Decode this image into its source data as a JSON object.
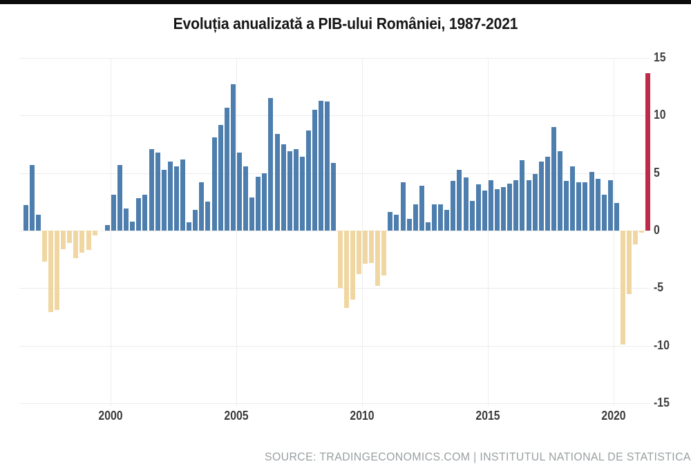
{
  "header": {
    "title": "Evoluția anualizată a PIB-ului României, 1987-2021"
  },
  "footer": {
    "source": "SOURCE: TRADINGECONOMICS.COM | INSTITUTUL NATIONAL DE STATISTICA"
  },
  "chart_data": {
    "type": "bar",
    "title": "Evoluția anualizată a PIB-ului României, 1987-2021",
    "unit": "percent",
    "frequency": "quarterly",
    "start_period": "1996-Q3",
    "end_period": "2021-Q2",
    "ylim": [
      -15,
      15
    ],
    "y_ticks": [
      15,
      10,
      5,
      0,
      -5,
      -10,
      -15
    ],
    "x_tick_years": [
      2000,
      2005,
      2010,
      2015,
      2020
    ],
    "grid": true,
    "legend": "none",
    "colors": {
      "positive": "#4d7ead",
      "negative": "#f0d7a2",
      "latest": "#be2b49",
      "gridline": "#ebebeb",
      "title_text": "#161616",
      "axis_text": "#3e3e3e",
      "source_text": "#9a9fa2"
    },
    "latest_bar_index": 99,
    "values": [
      2.2,
      5.7,
      1.4,
      -2.7,
      -7.1,
      -6.9,
      -1.6,
      -1.1,
      -2.4,
      -1.9,
      -1.7,
      -0.4,
      0.0,
      0.5,
      3.1,
      5.7,
      1.9,
      0.8,
      2.8,
      3.1,
      7.1,
      6.8,
      5.3,
      6.0,
      5.6,
      6.2,
      0.7,
      1.8,
      4.2,
      2.5,
      8.1,
      9.2,
      10.7,
      12.7,
      6.8,
      5.6,
      2.9,
      4.7,
      5.0,
      11.5,
      8.4,
      7.5,
      6.9,
      7.1,
      6.4,
      8.7,
      10.5,
      11.3,
      11.2,
      5.9,
      -5.0,
      -6.7,
      -6.0,
      -3.8,
      -2.9,
      -2.8,
      -4.8,
      -3.9,
      1.6,
      1.4,
      4.2,
      1.0,
      2.3,
      3.9,
      0.7,
      2.3,
      2.3,
      1.8,
      4.3,
      5.3,
      4.6,
      2.6,
      4.0,
      3.5,
      4.4,
      3.6,
      3.8,
      4.1,
      4.4,
      6.1,
      4.4,
      4.9,
      6.0,
      6.4,
      9.0,
      6.9,
      4.3,
      5.6,
      4.2,
      4.2,
      5.1,
      4.5,
      3.1,
      4.4,
      2.4,
      -9.9,
      -5.5,
      -1.2,
      -0.2,
      13.7
    ]
  }
}
